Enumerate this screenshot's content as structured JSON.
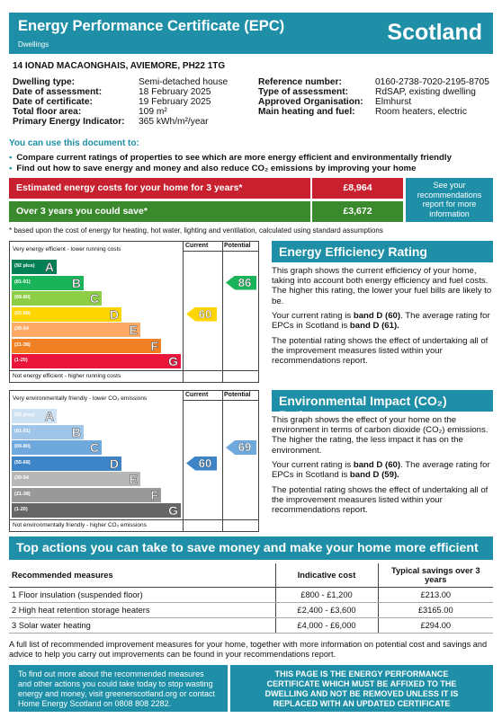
{
  "header": {
    "title": "Energy Performance Certificate (EPC)",
    "subtitle": "Dwellings",
    "country": "Scotland"
  },
  "address": "14 IONAD MACAONGHAIS, AVIEMORE, PH22 1TG",
  "details_left": [
    {
      "key": "Dwelling type:",
      "value": "Semi-detached house"
    },
    {
      "key": "Date of assessment:",
      "value": "18 February 2025"
    },
    {
      "key": "Date of certificate:",
      "value": "19 February 2025"
    },
    {
      "key": "Total floor area:",
      "value": "109 m²"
    },
    {
      "key": "Primary Energy Indicator:",
      "value": "365 kWh/m²/year"
    }
  ],
  "details_right": [
    {
      "key": "Reference number:",
      "value": "0160-2738-7020-2195-8705"
    },
    {
      "key": "Type of assessment:",
      "value": "RdSAP, existing dwelling"
    },
    {
      "key": "Approved Organisation:",
      "value": "Elmhurst"
    },
    {
      "key": "Main heating and fuel:",
      "value": "Room heaters, electric"
    }
  ],
  "use_doc": {
    "heading": "You can use this document to:",
    "bullets": [
      "Compare current ratings of properties to see which are more energy efficient and environmentally friendly",
      "Find out how to save energy and money and also reduce CO₂ emissions by improving your home"
    ]
  },
  "costs": {
    "estimated_label": "Estimated energy costs for your home for 3 years*",
    "estimated_value": "£8,964",
    "save_label": "Over 3 years you could save*",
    "save_value": "£3,672",
    "see_recs": "See your recommendations report for more information",
    "footnote": "* based upon the cost of energy for heating, hot water, lighting and ventilation, calculated using standard assumptions"
  },
  "eer_chart": {
    "top_text": "Very energy efficient - lower running costs",
    "bottom_text": "Not energy efficient - higher running costs",
    "col_current": "Current",
    "col_potential": "Potential",
    "bands": [
      {
        "range": "(92 plus)",
        "letter": "A",
        "color": "#008054"
      },
      {
        "range": "(81-91)",
        "letter": "B",
        "color": "#19b459"
      },
      {
        "range": "(69-80)",
        "letter": "C",
        "color": "#8dce46"
      },
      {
        "range": "(55-68)",
        "letter": "D",
        "color": "#ffd500"
      },
      {
        "range": "(39-54",
        "letter": "E",
        "color": "#fcaa65"
      },
      {
        "range": "(21-38)",
        "letter": "F",
        "color": "#ef8023"
      },
      {
        "range": "(1-20)",
        "letter": "G",
        "color": "#e9153b"
      }
    ],
    "current": 60,
    "current_color": "#ffd500",
    "potential": 86,
    "potential_color": "#19b459"
  },
  "eir_chart": {
    "top_text": "Very environmentally friendly - lower CO₂ emissions",
    "bottom_text": "Not environmentally friendly - higher CO₂ emissions",
    "col_current": "Current",
    "col_potential": "Potential",
    "bands": [
      {
        "range": "(92 plus)",
        "letter": "A",
        "color": "#cfe2f3"
      },
      {
        "range": "(81-91)",
        "letter": "B",
        "color": "#9fc5e8"
      },
      {
        "range": "(69-80)",
        "letter": "C",
        "color": "#6fa8dc"
      },
      {
        "range": "(55-68)",
        "letter": "D",
        "color": "#3d85c6"
      },
      {
        "range": "(39-54",
        "letter": "E",
        "color": "#b7b7b7"
      },
      {
        "range": "(21-38)",
        "letter": "F",
        "color": "#999999"
      },
      {
        "range": "(1-20)",
        "letter": "G",
        "color": "#666666"
      }
    ],
    "current": 60,
    "current_color": "#3d85c6",
    "potential": 69,
    "potential_color": "#6fa8dc"
  },
  "eer_text": {
    "heading": "Energy Efficiency Rating",
    "p1": "This graph shows the current efficiency of your home, taking into account both energy efficiency and fuel costs. The higher this rating, the lower your fuel bills are likely to be.",
    "p2_pre": "Your current rating is ",
    "p2_bold1": "band D (60)",
    "p2_mid": ". The average rating for EPCs in Scotland is ",
    "p2_bold2": "band D (61).",
    "p3": "The potential rating shows the effect of undertaking all of the improvement measures listed within your recommendations report."
  },
  "eir_text": {
    "heading": "Environmental Impact (CO₂) Rating",
    "p1": "This graph shows the effect of your home on the environment in terms of carbon dioxide (CO₂) emissions. The higher the rating, the less impact it has on the environment.",
    "p2_pre": "Your current rating is ",
    "p2_bold1": "band D (60)",
    "p2_mid": ". The average rating for EPCs in Scotland is ",
    "p2_bold2": "band D (59).",
    "p3": "The potential rating shows the effect of undertaking all of the improvement measures listed within your recommendations report."
  },
  "actions": {
    "heading": "Top actions you can take to save money and make your home more efficient",
    "col_measure": "Recommended measures",
    "col_cost": "Indicative cost",
    "col_savings": "Typical savings over 3 years",
    "rows": [
      {
        "measure": "1 Floor insulation (suspended floor)",
        "cost": "£800 - £1,200",
        "saving": "£213.00"
      },
      {
        "measure": "2 High heat retention storage heaters",
        "cost": "£2,400 - £3,600",
        "saving": "£3165.00"
      },
      {
        "measure": "3 Solar water heating",
        "cost": "£4,000 - £6,000",
        "saving": "£294.00"
      }
    ],
    "full_note": "A full list of recommended improvement measures for your home, together with more information on potential cost and savings and advice to help you carry out improvements can be found in your recommendations report."
  },
  "footer": {
    "left": "To find out more about the recommended measures and other actions you could take today to stop wasting energy and money, visit greenerscotland.org or contact Home Energy Scotland on 0808 808 2282.",
    "right": "THIS PAGE IS THE ENERGY PERFORMANCE CERTIFICATE WHICH MUST BE AFFIXED TO THE DWELLING AND NOT BE REMOVED UNLESS IT IS REPLACED WITH AN UPDATED CERTIFICATE"
  }
}
